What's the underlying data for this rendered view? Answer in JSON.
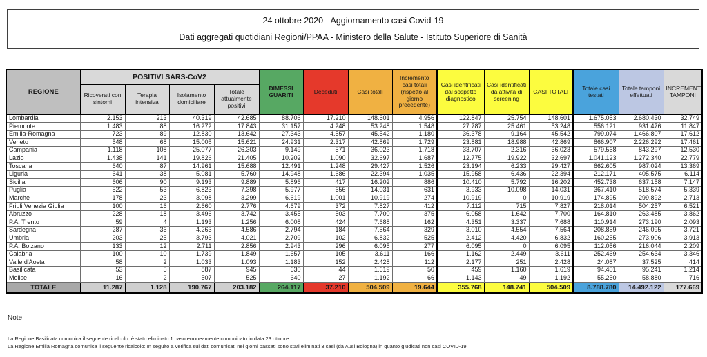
{
  "header": {
    "line1": "24 ottobre 2020 - Aggiornamento casi Covid-19",
    "line2": "Dati aggregati quotidiani Regioni/PPAA - Ministero della Salute - Istituto Superiore di Sanità"
  },
  "colors": {
    "green": "#57A863",
    "red": "#E5392B",
    "orange": "#F0B142",
    "yellow": "#FCFC3F",
    "blue": "#4AA3DC",
    "lavender": "#BCC7E3",
    "light_gray": "#D9D9D9",
    "header_gray": "#BFBFBF",
    "subheader_gray": "#D9D9D9",
    "total_gray": "#A8A8A8"
  },
  "table": {
    "group_header": "POSITIVI SARS-CoV2",
    "columns": [
      "REGIONE",
      "Ricoverati con sintomi",
      "Terapia intensiva",
      "Isolamento domiciliare",
      "Totale attualmente positivi",
      "DIMESSI GUARITI",
      "Deceduti",
      "Casi totali",
      "Incremento casi totali (rispetto al giorno precedente)",
      "Casi identificati dal sospetto diagnostico",
      "Casi identificati da attività di screening",
      "CASI TOTALI",
      "Totale casi testati",
      "Totale tamponi effettuati",
      "INCREMENTO TAMPONI"
    ],
    "rows": [
      {
        "regione": "Lombardia",
        "values": [
          "2.153",
          "213",
          "40.319",
          "42.685",
          "88.706",
          "17.210",
          "148.601",
          "4.956",
          "122.847",
          "25.754",
          "148.601",
          "1.675.053",
          "2.680.430",
          "32.749"
        ]
      },
      {
        "regione": "Piemonte",
        "values": [
          "1.483",
          "88",
          "16.272",
          "17.843",
          "31.157",
          "4.248",
          "53.248",
          "1.548",
          "27.787",
          "25.461",
          "53.248",
          "556.121",
          "931.476",
          "11.847"
        ]
      },
      {
        "regione": "Emilia-Romagna",
        "values": [
          "723",
          "89",
          "12.830",
          "13.642",
          "27.343",
          "4.557",
          "45.542",
          "1.180",
          "36.378",
          "9.164",
          "45.542",
          "799.074",
          "1.466.807",
          "17.612"
        ]
      },
      {
        "regione": "Veneto",
        "values": [
          "548",
          "68",
          "15.005",
          "15.621",
          "24.931",
          "2.317",
          "42.869",
          "1.729",
          "23.881",
          "18.988",
          "42.869",
          "866.907",
          "2.226.292",
          "17.461"
        ]
      },
      {
        "regione": "Campania",
        "values": [
          "1.118",
          "108",
          "25.077",
          "26.303",
          "9.149",
          "571",
          "36.023",
          "1.718",
          "33.707",
          "2.316",
          "36.023",
          "579.568",
          "843.297",
          "12.530"
        ]
      },
      {
        "regione": "Lazio",
        "values": [
          "1.438",
          "141",
          "19.826",
          "21.405",
          "10.202",
          "1.090",
          "32.697",
          "1.687",
          "12.775",
          "19.922",
          "32.697",
          "1.041.123",
          "1.272.340",
          "22.779"
        ]
      },
      {
        "regione": "Toscana",
        "values": [
          "640",
          "87",
          "14.961",
          "15.688",
          "12.491",
          "1.248",
          "29.427",
          "1.526",
          "23.194",
          "6.233",
          "29.427",
          "662.605",
          "987.024",
          "13.369"
        ]
      },
      {
        "regione": "Liguria",
        "values": [
          "641",
          "38",
          "5.081",
          "5.760",
          "14.948",
          "1.686",
          "22.394",
          "1.035",
          "15.958",
          "6.436",
          "22.394",
          "212.171",
          "405.575",
          "6.114"
        ]
      },
      {
        "regione": "Sicilia",
        "values": [
          "606",
          "90",
          "9.193",
          "9.889",
          "5.896",
          "417",
          "16.202",
          "886",
          "10.410",
          "5.792",
          "16.202",
          "452.738",
          "637.158",
          "7.147"
        ]
      },
      {
        "regione": "Puglia",
        "values": [
          "522",
          "53",
          "6.823",
          "7.398",
          "5.977",
          "656",
          "14.031",
          "631",
          "3.933",
          "10.098",
          "14.031",
          "367.410",
          "518.574",
          "5.339"
        ]
      },
      {
        "regione": "Marche",
        "values": [
          "178",
          "23",
          "3.098",
          "3.299",
          "6.619",
          "1.001",
          "10.919",
          "274",
          "10.919",
          "0",
          "10.919",
          "174.895",
          "299.892",
          "2.713"
        ]
      },
      {
        "regione": "Friuli Venezia Giulia",
        "values": [
          "100",
          "16",
          "2.660",
          "2.776",
          "4.679",
          "372",
          "7.827",
          "412",
          "7.112",
          "715",
          "7.827",
          "218.014",
          "504.257",
          "6.521"
        ]
      },
      {
        "regione": "Abruzzo",
        "values": [
          "228",
          "18",
          "3.496",
          "3.742",
          "3.455",
          "503",
          "7.700",
          "375",
          "6.058",
          "1.642",
          "7.700",
          "164.810",
          "263.485",
          "3.862"
        ]
      },
      {
        "regione": "P.A. Trento",
        "values": [
          "59",
          "4",
          "1.193",
          "1.256",
          "6.008",
          "424",
          "7.688",
          "162",
          "4.351",
          "3.337",
          "7.688",
          "110.914",
          "273.190",
          "2.093"
        ]
      },
      {
        "regione": "Sardegna",
        "values": [
          "287",
          "36",
          "4.263",
          "4.586",
          "2.794",
          "184",
          "7.564",
          "329",
          "3.010",
          "4.554",
          "7.564",
          "208.859",
          "246.095",
          "3.721"
        ]
      },
      {
        "regione": "Umbria",
        "values": [
          "203",
          "25",
          "3.793",
          "4.021",
          "2.709",
          "102",
          "6.832",
          "525",
          "2.412",
          "4.420",
          "6.832",
          "160.255",
          "273.906",
          "3.913"
        ]
      },
      {
        "regione": "P.A. Bolzano",
        "values": [
          "133",
          "12",
          "2.711",
          "2.856",
          "2.943",
          "296",
          "6.095",
          "277",
          "6.095",
          "0",
          "6.095",
          "112.056",
          "216.044",
          "2.209"
        ]
      },
      {
        "regione": "Calabria",
        "values": [
          "100",
          "10",
          "1.739",
          "1.849",
          "1.657",
          "105",
          "3.611",
          "166",
          "1.162",
          "2.449",
          "3.611",
          "252.469",
          "254.634",
          "3.346"
        ]
      },
      {
        "regione": "Valle d'Aosta",
        "values": [
          "58",
          "2",
          "1.033",
          "1.093",
          "1.183",
          "152",
          "2.428",
          "112",
          "2.177",
          "251",
          "2.428",
          "24.087",
          "37.525",
          "414"
        ]
      },
      {
        "regione": "Basilicata",
        "values": [
          "53",
          "5",
          "887",
          "945",
          "630",
          "44",
          "1.619",
          "50",
          "459",
          "1.160",
          "1.619",
          "94.401",
          "95.241",
          "1.214"
        ]
      },
      {
        "regione": "Molise",
        "values": [
          "16",
          "2",
          "507",
          "525",
          "640",
          "27",
          "1.192",
          "66",
          "1.143",
          "49",
          "1.192",
          "55.250",
          "58.880",
          "716"
        ]
      }
    ],
    "total": {
      "label": "TOTALE",
      "values": [
        "11.287",
        "1.128",
        "190.767",
        "203.182",
        "264.117",
        "37.210",
        "504.509",
        "19.644",
        "355.768",
        "148.741",
        "504.509",
        "8.788.780",
        "14.492.122",
        "177.669"
      ]
    }
  },
  "notes": {
    "title": "Note:",
    "items": [
      "La Regione Basilicata comunica il seguente ricalcolo: è stato eliminato 1 caso erroneamente comunicato in data 23 ottobre.",
      "La Regione Emilia Romagna comunica il seguente ricalcolo: In seguito a verifica sui dati comunicati nei giorni passati sono stati eliminati 3 casi (da Ausl Bologna) in quanto giudicati non casi COVID-19."
    ]
  }
}
